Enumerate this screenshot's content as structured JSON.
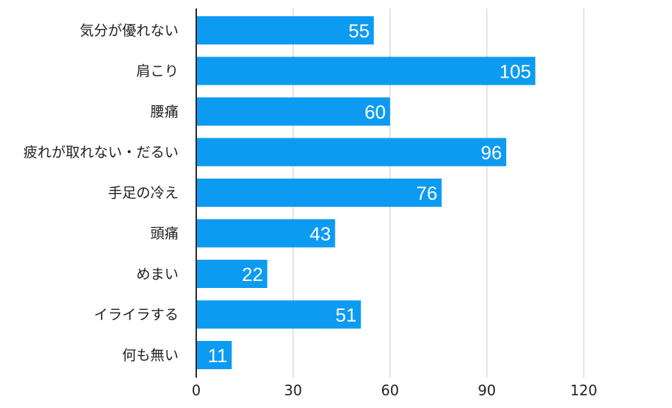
{
  "chart_data": {
    "type": "bar",
    "orientation": "horizontal",
    "categories": [
      "気分が優れない",
      "肩こり",
      "腰痛",
      "疲れが取れない・だるい",
      "手足の冷え",
      "頭痛",
      "めまい",
      "イライラする",
      "何も無い"
    ],
    "values": [
      55,
      105,
      60,
      96,
      76,
      43,
      22,
      51,
      11
    ],
    "title": "",
    "xlabel": "",
    "ylabel": "",
    "xlim": [
      0,
      135
    ],
    "ticks": [
      0,
      30,
      60,
      90,
      120
    ],
    "grid": true,
    "legend": "none",
    "data_labels": "inside-end"
  },
  "colors": {
    "bar": "#0d9bf2",
    "grid": "#c8c8c8",
    "axis": "#222222",
    "value_text": "#ffffff",
    "label_text": "#222222"
  }
}
